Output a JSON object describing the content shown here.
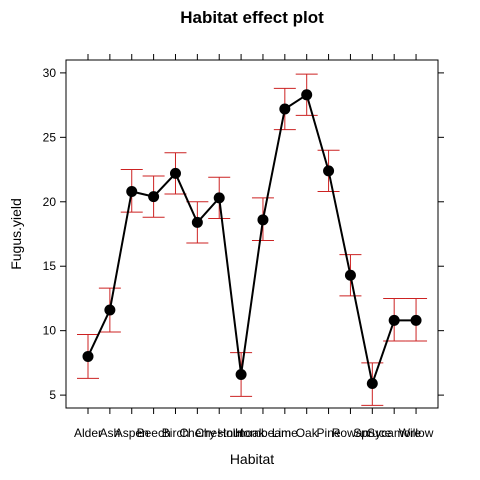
{
  "chart_data": {
    "type": "line",
    "title": "Habitat effect plot",
    "xlabel": "Habitat",
    "ylabel": "Fugus.yield",
    "categories": [
      "Alder",
      "Ash",
      "Aspen",
      "Beech",
      "Birch",
      "Cherry",
      "Chestnut",
      "Holmoak",
      "Hornbeam",
      "Lime",
      "Oak",
      "Pine",
      "Rowan",
      "Spruce",
      "Sycamore",
      "Willow"
    ],
    "ylim": [
      4,
      31
    ],
    "yticks": [
      5,
      10,
      15,
      20,
      25,
      30
    ],
    "grid": false,
    "series": [
      {
        "values": [
          8.0,
          11.6,
          20.8,
          20.4,
          22.2,
          18.4,
          20.3,
          6.6,
          18.6,
          27.2,
          28.3,
          22.4,
          14.3,
          5.9,
          10.8,
          10.8
        ],
        "lower": [
          6.3,
          9.9,
          19.2,
          18.8,
          20.6,
          16.8,
          18.7,
          4.9,
          17.0,
          25.6,
          26.7,
          20.8,
          12.7,
          4.2,
          9.2,
          9.2
        ],
        "upper": [
          9.7,
          13.3,
          22.5,
          22.0,
          23.8,
          20.0,
          21.9,
          8.3,
          20.3,
          28.8,
          29.9,
          24.0,
          15.9,
          7.5,
          12.5,
          12.5
        ]
      }
    ],
    "colors": {
      "line": "#000000",
      "points": "#000000",
      "error_bars": "#cc2222"
    }
  }
}
